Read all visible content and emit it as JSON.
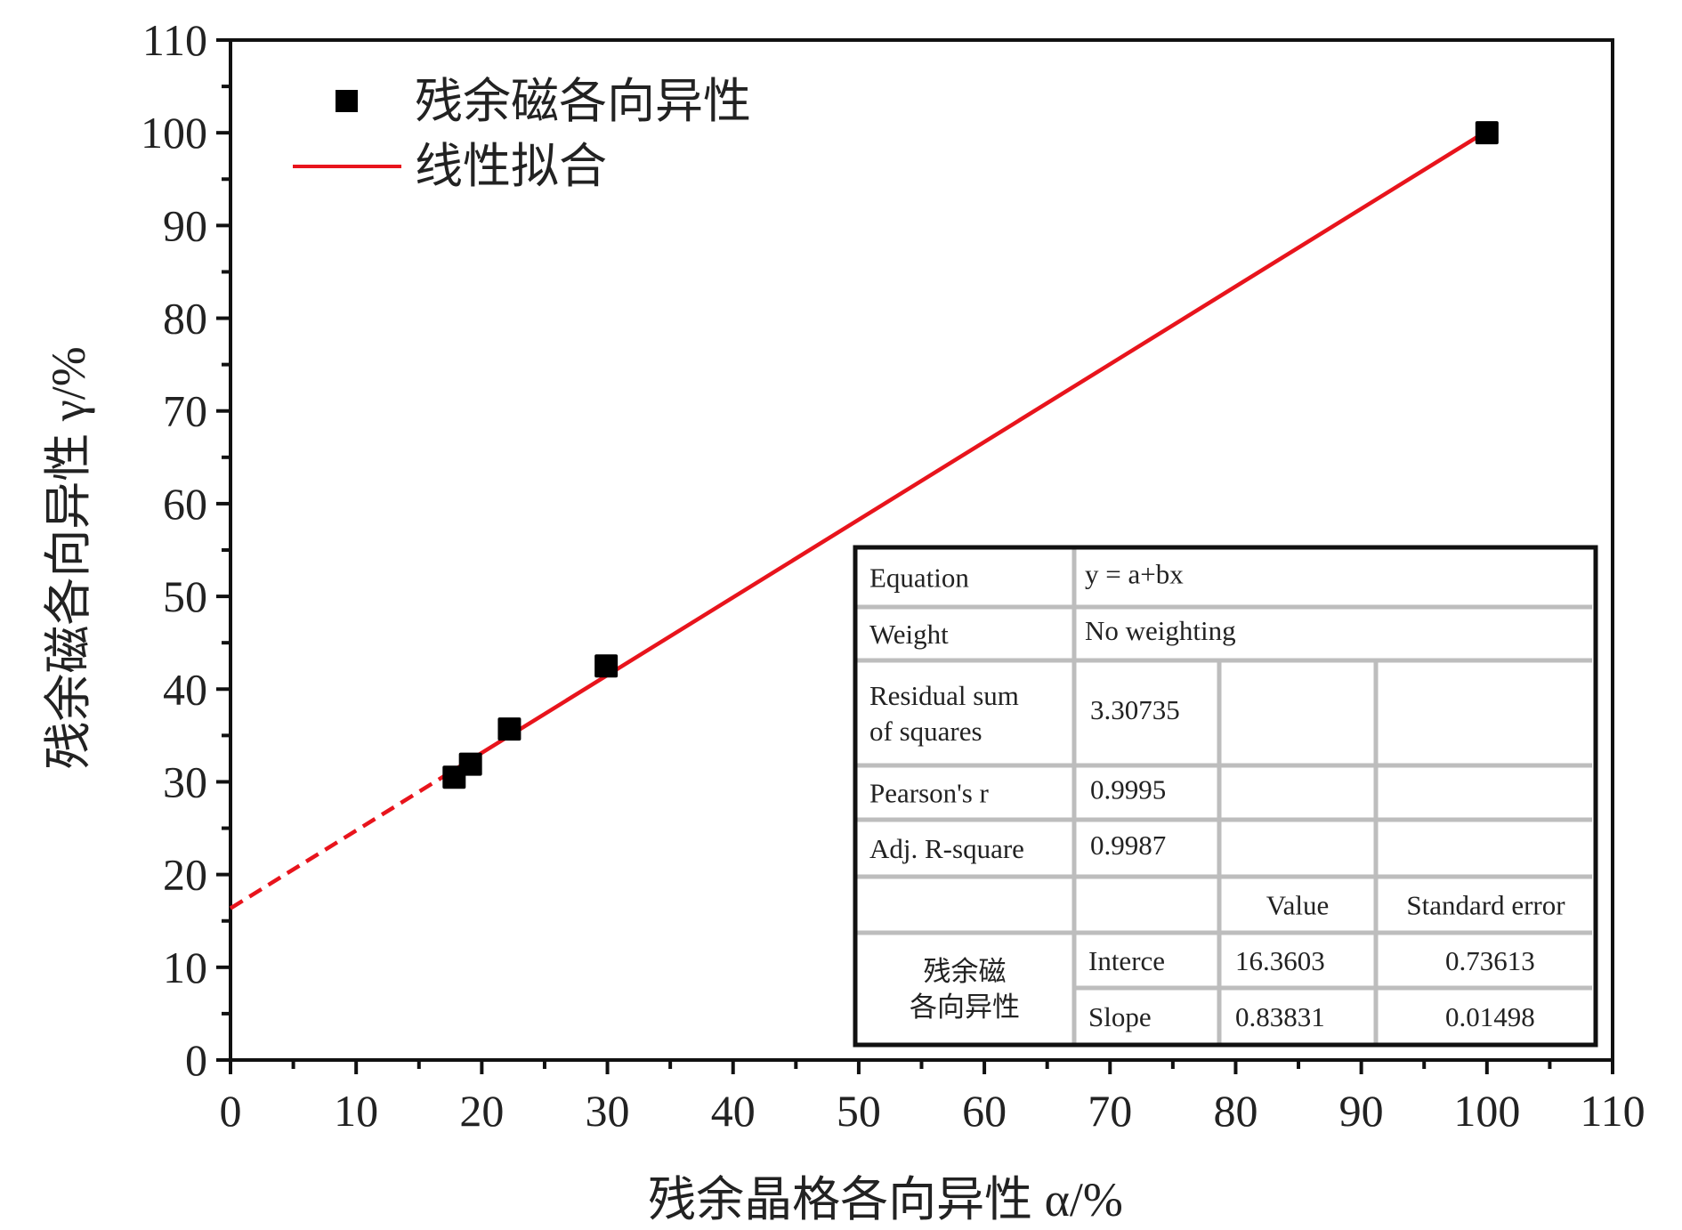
{
  "chart_data": {
    "type": "scatter",
    "title": "",
    "xlabel": "残余晶格各向异性 α/%",
    "ylabel": "残余磁各向异性 γ/%",
    "xlim": [
      0,
      110
    ],
    "ylim": [
      0,
      110
    ],
    "xticks": [
      "0",
      "10",
      "20",
      "30",
      "40",
      "50",
      "60",
      "70",
      "80",
      "90",
      "100",
      "110"
    ],
    "yticks": [
      "0",
      "10",
      "20",
      "30",
      "40",
      "50",
      "60",
      "70",
      "80",
      "90",
      "100",
      "110"
    ],
    "grid": false,
    "legend_placement": "top-left",
    "series": [
      {
        "name": "残余磁各向异性",
        "kind": "scatter",
        "color": "#000000",
        "x": [
          17.8,
          19.1,
          22.2,
          29.9,
          100.0
        ],
        "y": [
          30.5,
          31.9,
          35.7,
          42.5,
          100.0
        ]
      },
      {
        "name": "线性拟合",
        "kind": "line",
        "color": "#e8141c",
        "intercept": 16.3603,
        "slope": 0.83831,
        "solid_range": [
          17.5,
          100
        ],
        "dashed_range": [
          0,
          17.5
        ]
      }
    ],
    "fit_table": {
      "rows": [
        [
          "Equation",
          "y = a+bx"
        ],
        [
          "Weight",
          "No weighting"
        ],
        [
          "Residual sum|of squares",
          "3.30735",
          "",
          ""
        ],
        [
          "Pearson's r",
          "0.9995",
          "",
          ""
        ],
        [
          "Adj. R-square",
          "0.9987",
          "",
          ""
        ],
        [
          "",
          "",
          "Value",
          "Standard error"
        ],
        [
          "残余磁|各向异性",
          "Interce",
          "16.3603",
          "0.73613"
        ],
        [
          "",
          "Slope",
          "0.83831",
          "0.01498"
        ]
      ]
    }
  }
}
